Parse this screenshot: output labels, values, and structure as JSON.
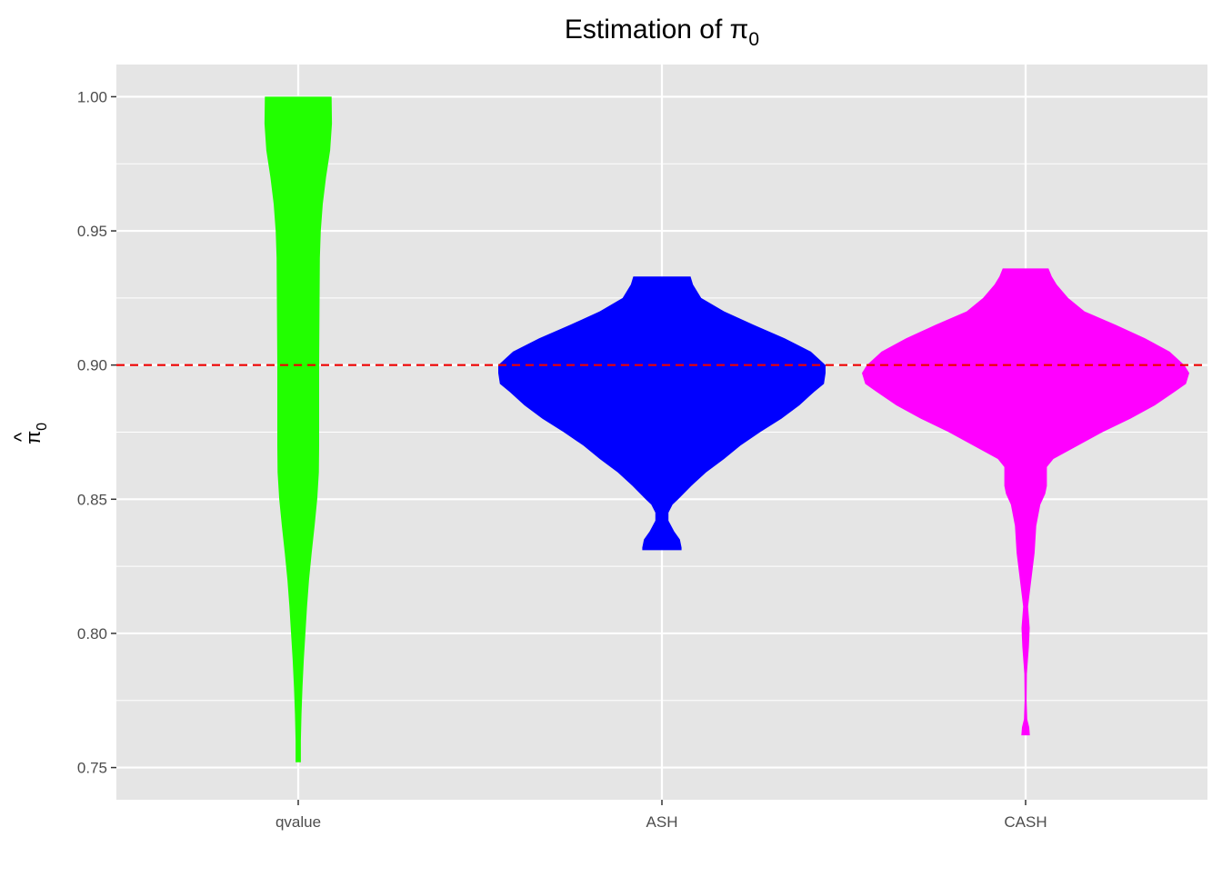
{
  "chart_data": {
    "type": "violin",
    "title": "Estimation of π",
    "title_subscript": "0",
    "xlabel": "",
    "ylabel": "π",
    "ylabel_hat": "^",
    "ylabel_subscript": "0",
    "ylim": [
      0.738,
      1.012
    ],
    "yticks": [
      0.75,
      0.8,
      0.85,
      0.9,
      0.95,
      1.0
    ],
    "ytick_labels": [
      "0.75",
      "0.80",
      "0.85",
      "0.90",
      "0.95",
      "1.00"
    ],
    "categories": [
      "qvalue",
      "ASH",
      "CASH"
    ],
    "reference_line": {
      "y": 0.9,
      "color": "#ee0000",
      "style": "dashed"
    },
    "grid": true,
    "panel_background": "#e5e5e5",
    "gridline_color": "#ffffff",
    "series": [
      {
        "category": "qvalue",
        "fill": "#22ff00",
        "profile": [
          [
            1.0,
            0.204
          ],
          [
            0.99,
            0.206
          ],
          [
            0.98,
            0.195
          ],
          [
            0.97,
            0.17
          ],
          [
            0.96,
            0.15
          ],
          [
            0.95,
            0.138
          ],
          [
            0.94,
            0.132
          ],
          [
            0.92,
            0.13
          ],
          [
            0.9,
            0.128
          ],
          [
            0.88,
            0.128
          ],
          [
            0.87,
            0.128
          ],
          [
            0.86,
            0.126
          ],
          [
            0.85,
            0.116
          ],
          [
            0.84,
            0.1
          ],
          [
            0.83,
            0.082
          ],
          [
            0.82,
            0.066
          ],
          [
            0.81,
            0.054
          ],
          [
            0.8,
            0.044
          ],
          [
            0.79,
            0.034
          ],
          [
            0.78,
            0.026
          ],
          [
            0.77,
            0.02
          ],
          [
            0.76,
            0.016
          ],
          [
            0.752,
            0.016
          ]
        ]
      },
      {
        "category": "ASH",
        "fill": "#0000ff",
        "profile": [
          [
            0.933,
            0.175
          ],
          [
            0.93,
            0.19
          ],
          [
            0.925,
            0.24
          ],
          [
            0.92,
            0.38
          ],
          [
            0.915,
            0.56
          ],
          [
            0.91,
            0.75
          ],
          [
            0.905,
            0.91
          ],
          [
            0.9,
            1.0
          ],
          [
            0.897,
            1.0
          ],
          [
            0.893,
            0.99
          ],
          [
            0.89,
            0.93
          ],
          [
            0.885,
            0.84
          ],
          [
            0.88,
            0.73
          ],
          [
            0.875,
            0.6
          ],
          [
            0.87,
            0.48
          ],
          [
            0.865,
            0.38
          ],
          [
            0.86,
            0.27
          ],
          [
            0.855,
            0.18
          ],
          [
            0.85,
            0.1
          ],
          [
            0.848,
            0.065
          ],
          [
            0.845,
            0.04
          ],
          [
            0.842,
            0.04
          ],
          [
            0.838,
            0.075
          ],
          [
            0.835,
            0.11
          ],
          [
            0.832,
            0.12
          ],
          [
            0.831,
            0.12
          ]
        ]
      },
      {
        "category": "CASH",
        "fill": "#ff00ff",
        "profile": [
          [
            0.936,
            0.14
          ],
          [
            0.933,
            0.16
          ],
          [
            0.93,
            0.19
          ],
          [
            0.925,
            0.26
          ],
          [
            0.92,
            0.36
          ],
          [
            0.915,
            0.55
          ],
          [
            0.91,
            0.73
          ],
          [
            0.905,
            0.88
          ],
          [
            0.9,
            0.97
          ],
          [
            0.897,
            1.0
          ],
          [
            0.893,
            0.98
          ],
          [
            0.89,
            0.91
          ],
          [
            0.885,
            0.79
          ],
          [
            0.88,
            0.64
          ],
          [
            0.875,
            0.47
          ],
          [
            0.87,
            0.32
          ],
          [
            0.865,
            0.17
          ],
          [
            0.862,
            0.13
          ],
          [
            0.858,
            0.13
          ],
          [
            0.855,
            0.13
          ],
          [
            0.852,
            0.12
          ],
          [
            0.848,
            0.09
          ],
          [
            0.84,
            0.065
          ],
          [
            0.83,
            0.055
          ],
          [
            0.82,
            0.035
          ],
          [
            0.81,
            0.015
          ],
          [
            0.802,
            0.025
          ],
          [
            0.795,
            0.02
          ],
          [
            0.785,
            0.008
          ],
          [
            0.775,
            0.006
          ],
          [
            0.768,
            0.01
          ],
          [
            0.765,
            0.022
          ],
          [
            0.762,
            0.026
          ]
        ]
      }
    ]
  }
}
